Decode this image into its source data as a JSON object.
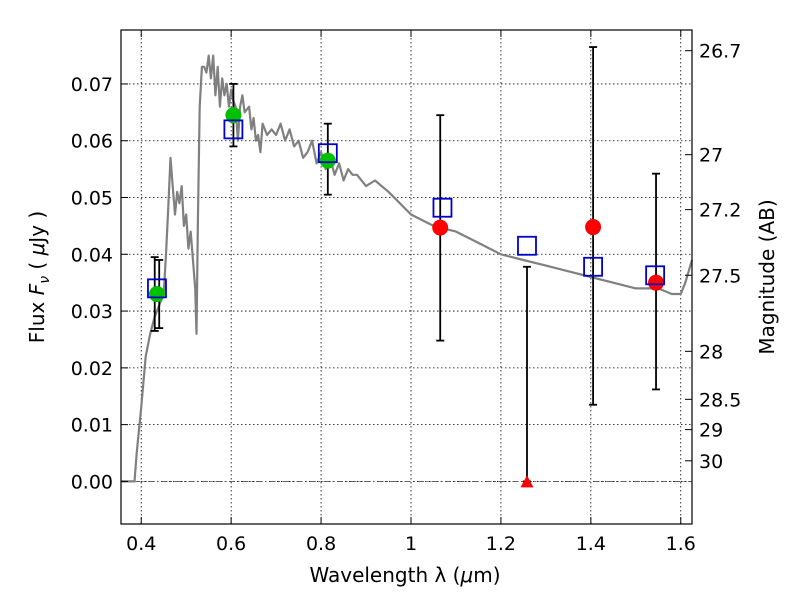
{
  "chart_data": {
    "type": "scatter",
    "xlabel_text": "Wavelength  λ (",
    "xlabel_mu": "μ",
    "xlabel_unit": "m)",
    "ylabel_text": "Flux  ",
    "ylabel_symbol": "F",
    "ylabel_sub": "ν",
    "ylabel_unit_open": "  (  ",
    "ylabel_mu": "μ",
    "ylabel_unit": "Jy )",
    "y2label": "Magnitude (AB)",
    "xlim": [
      0.355,
      1.625
    ],
    "ylim": [
      -0.0075,
      0.0795
    ],
    "grid": true,
    "x_ticks": [
      {
        "v": 0.4,
        "label": "0.4"
      },
      {
        "v": 0.6,
        "label": "0.6"
      },
      {
        "v": 0.8,
        "label": "0.8"
      },
      {
        "v": 1.0,
        "label": "1"
      },
      {
        "v": 1.2,
        "label": "1.2"
      },
      {
        "v": 1.4,
        "label": "1.4"
      },
      {
        "v": 1.6,
        "label": "1.6"
      }
    ],
    "y_ticks": [
      {
        "v": 0.0,
        "label": "0.00"
      },
      {
        "v": 0.01,
        "label": "0.01"
      },
      {
        "v": 0.02,
        "label": "0.02"
      },
      {
        "v": 0.03,
        "label": "0.03"
      },
      {
        "v": 0.04,
        "label": "0.04"
      },
      {
        "v": 0.05,
        "label": "0.05"
      },
      {
        "v": 0.06,
        "label": "0.06"
      },
      {
        "v": 0.07,
        "label": "0.07"
      }
    ],
    "y2_ticks": [
      {
        "mag": 26.7,
        "label": "26.7"
      },
      {
        "mag": 27.0,
        "label": "27"
      },
      {
        "mag": 27.2,
        "label": "27.2"
      },
      {
        "mag": 27.5,
        "label": "27.5"
      },
      {
        "mag": 28.0,
        "label": "28"
      },
      {
        "mag": 28.5,
        "label": "28.5"
      },
      {
        "mag": 29.0,
        "label": "29"
      },
      {
        "mag": 30.0,
        "label": "30"
      }
    ],
    "colors": {
      "model": "#808080",
      "green": "#00c000",
      "red": "#ff0000",
      "blue": "#0000cc",
      "errorbar": "#000000"
    },
    "model_spectrum": {
      "x": [
        0.355,
        0.385,
        0.39,
        0.4,
        0.41,
        0.42,
        0.43,
        0.44,
        0.45,
        0.455,
        0.46,
        0.465,
        0.47,
        0.475,
        0.48,
        0.485,
        0.49,
        0.495,
        0.5,
        0.505,
        0.51,
        0.52,
        0.523,
        0.526,
        0.53,
        0.535,
        0.54,
        0.545,
        0.55,
        0.555,
        0.56,
        0.565,
        0.57,
        0.575,
        0.58,
        0.585,
        0.59,
        0.595,
        0.6,
        0.605,
        0.61,
        0.615,
        0.62,
        0.625,
        0.63,
        0.64,
        0.645,
        0.65,
        0.655,
        0.66,
        0.665,
        0.67,
        0.68,
        0.69,
        0.7,
        0.71,
        0.72,
        0.73,
        0.74,
        0.75,
        0.76,
        0.77,
        0.78,
        0.79,
        0.8,
        0.81,
        0.82,
        0.83,
        0.84,
        0.85,
        0.86,
        0.87,
        0.88,
        0.9,
        0.92,
        0.95,
        1.0,
        1.05,
        1.1,
        1.15,
        1.2,
        1.25,
        1.3,
        1.35,
        1.4,
        1.45,
        1.5,
        1.55,
        1.58,
        1.6,
        1.61,
        1.625
      ],
      "y": [
        0.0,
        0.0,
        0.005,
        0.013,
        0.022,
        0.026,
        0.029,
        0.031,
        0.033,
        0.04,
        0.048,
        0.057,
        0.052,
        0.047,
        0.051,
        0.049,
        0.052,
        0.045,
        0.047,
        0.041,
        0.044,
        0.034,
        0.026,
        0.046,
        0.066,
        0.073,
        0.073,
        0.072,
        0.075,
        0.071,
        0.075,
        0.068,
        0.073,
        0.066,
        0.071,
        0.068,
        0.07,
        0.066,
        0.069,
        0.067,
        0.066,
        0.06,
        0.066,
        0.068,
        0.065,
        0.066,
        0.062,
        0.064,
        0.06,
        0.061,
        0.058,
        0.063,
        0.061,
        0.062,
        0.061,
        0.063,
        0.06,
        0.062,
        0.059,
        0.06,
        0.057,
        0.058,
        0.06,
        0.056,
        0.058,
        0.055,
        0.057,
        0.054,
        0.056,
        0.053,
        0.055,
        0.054,
        0.054,
        0.052,
        0.053,
        0.051,
        0.047,
        0.045,
        0.044,
        0.042,
        0.04,
        0.039,
        0.038,
        0.037,
        0.036,
        0.035,
        0.034,
        0.034,
        0.033,
        0.033,
        0.035,
        0.039
      ]
    },
    "green_points": [
      {
        "x": 0.435,
        "y": 0.033
      },
      {
        "x": 0.605,
        "y": 0.0645
      },
      {
        "x": 0.815,
        "y": 0.0565
      }
    ],
    "red_points": [
      {
        "x": 1.065,
        "y": 0.0447
      },
      {
        "x": 1.405,
        "y": 0.0448
      },
      {
        "x": 1.545,
        "y": 0.035
      }
    ],
    "red_upper_limit": [
      {
        "x": 1.258,
        "y": 0.0
      }
    ],
    "blue_squares": [
      {
        "x": 0.435,
        "y": 0.034
      },
      {
        "x": 0.605,
        "y": 0.062
      },
      {
        "x": 0.815,
        "y": 0.0578
      },
      {
        "x": 1.07,
        "y": 0.0482
      },
      {
        "x": 1.258,
        "y": 0.0415
      },
      {
        "x": 1.405,
        "y": 0.0378
      },
      {
        "x": 1.543,
        "y": 0.0363
      }
    ],
    "error_bars": [
      {
        "x": 0.43,
        "low": 0.0265,
        "high": 0.0395
      },
      {
        "x": 0.44,
        "low": 0.027,
        "high": 0.039
      },
      {
        "x": 0.605,
        "low": 0.059,
        "high": 0.07
      },
      {
        "x": 0.815,
        "low": 0.0505,
        "high": 0.063
      },
      {
        "x": 1.065,
        "low": 0.0248,
        "high": 0.0645
      },
      {
        "x": 1.258,
        "low": 0.0,
        "high": 0.0378
      },
      {
        "x": 1.405,
        "low": 0.0135,
        "high": 0.0765
      },
      {
        "x": 1.545,
        "low": 0.0162,
        "high": 0.0542
      }
    ]
  }
}
